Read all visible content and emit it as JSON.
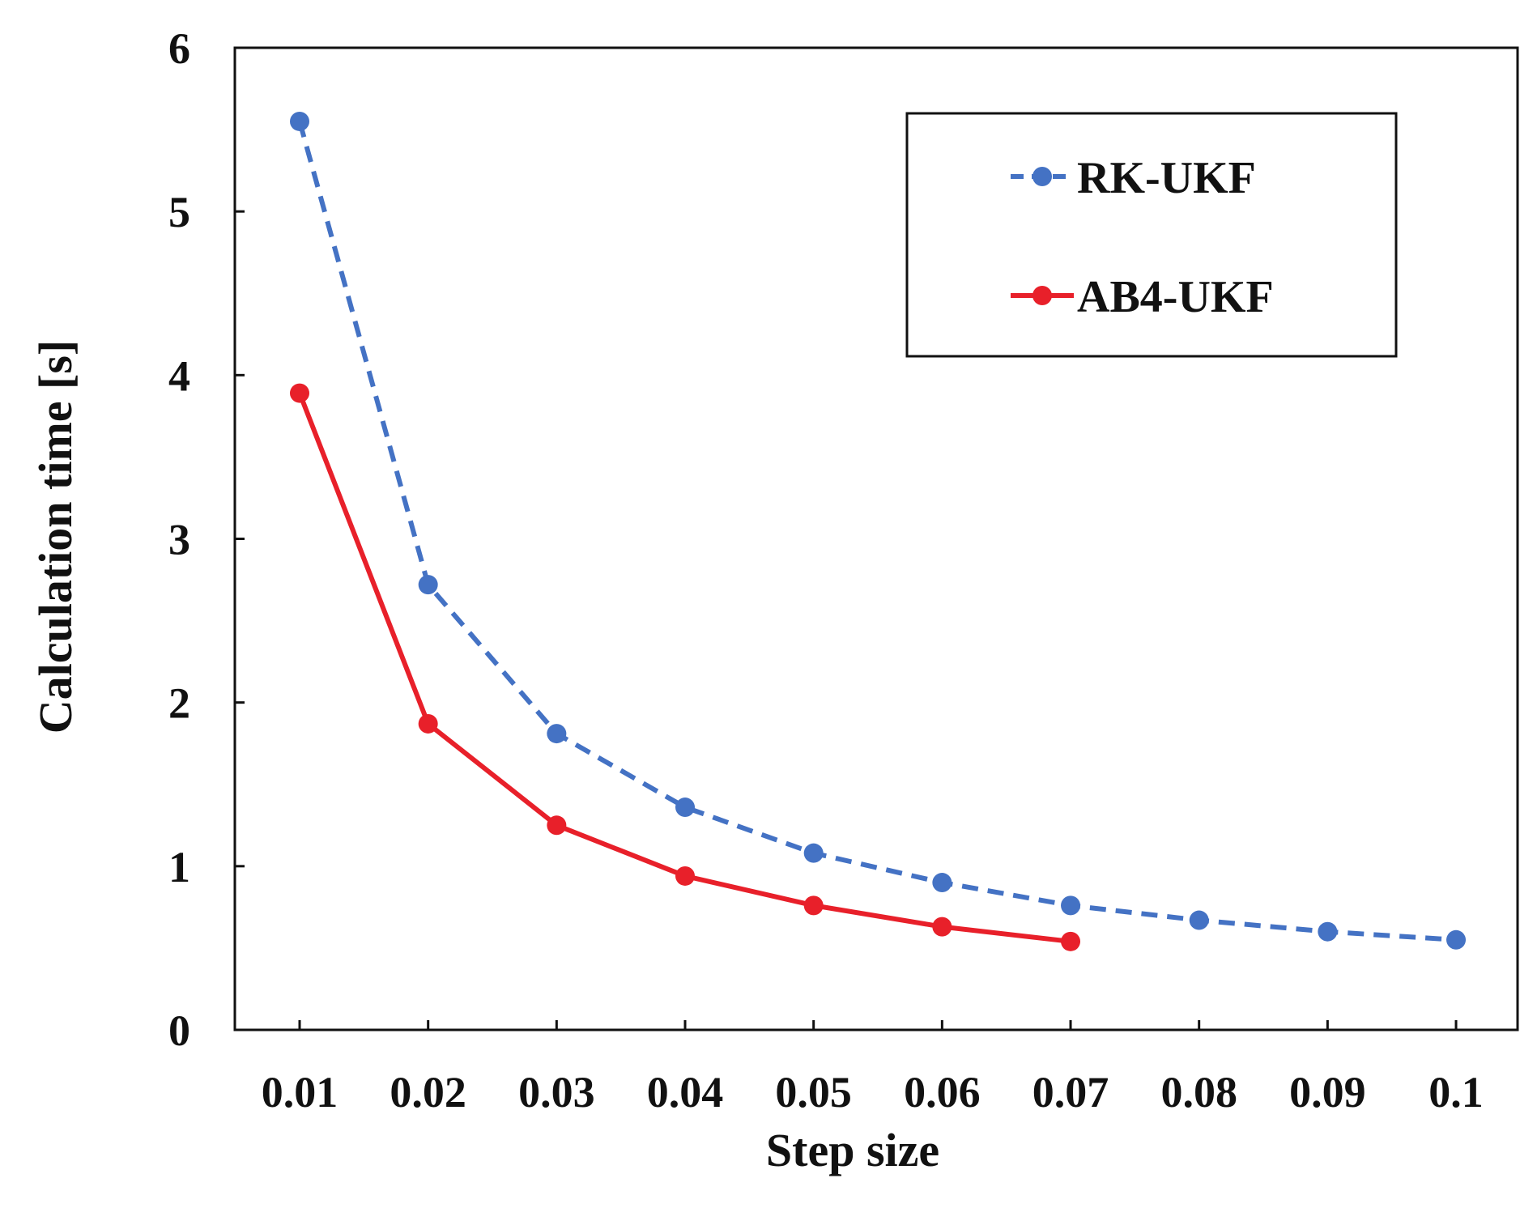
{
  "chart_data": {
    "type": "line",
    "title": "",
    "xlabel": "Step size",
    "ylabel": "Calculation time [s]",
    "x": [
      0.01,
      0.02,
      0.03,
      0.04,
      0.05,
      0.06,
      0.07,
      0.08,
      0.09,
      0.1
    ],
    "x_tick_labels": [
      "0.01",
      "0.02",
      "0.03",
      "0.04",
      "0.05",
      "0.06",
      "0.07",
      "0.08",
      "0.09",
      "0.1"
    ],
    "y_tick_labels": [
      "0",
      "1",
      "2",
      "3",
      "4",
      "5",
      "6"
    ],
    "ylim": [
      0,
      6
    ],
    "grid": false,
    "legend_position": "top-right",
    "series": [
      {
        "name": "RK-UKF",
        "color": "#4472C4",
        "line_style": "dashed",
        "marker": "circle",
        "x": [
          0.01,
          0.02,
          0.03,
          0.04,
          0.05,
          0.06,
          0.07,
          0.08,
          0.09,
          0.1
        ],
        "values": [
          5.55,
          2.72,
          1.81,
          1.36,
          1.08,
          0.9,
          0.76,
          0.67,
          0.6,
          0.55
        ]
      },
      {
        "name": "AB4-UKF",
        "color": "#E8202A",
        "line_style": "solid",
        "marker": "circle",
        "x": [
          0.01,
          0.02,
          0.03,
          0.04,
          0.05,
          0.06,
          0.07
        ],
        "values": [
          3.89,
          1.87,
          1.25,
          0.94,
          0.76,
          0.63,
          0.54
        ]
      }
    ]
  }
}
